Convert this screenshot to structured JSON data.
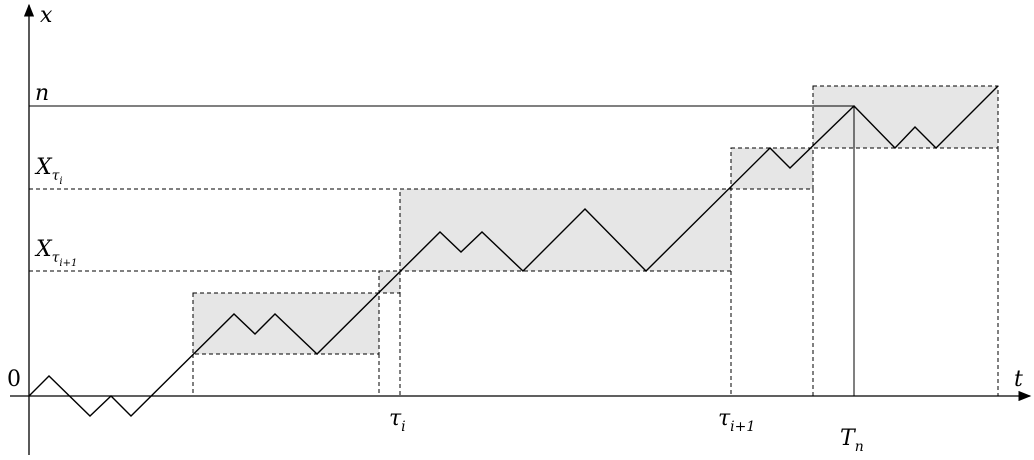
{
  "axes": {
    "x_axis_label": "t",
    "y_axis_label": "x",
    "origin_label": "0"
  },
  "y_labels": {
    "n": "n",
    "x_tau_i": {
      "base": "X",
      "sub": "τ",
      "subsub": "i"
    },
    "x_tau_i1": {
      "base": "X",
      "sub": "τ",
      "subsub": "i+1"
    }
  },
  "t_labels": {
    "tau_i": {
      "base": "τ",
      "sub": "i"
    },
    "tau_i1": {
      "base": "τ",
      "sub": "i+1"
    },
    "T_n": {
      "base": "T",
      "sub": "n"
    }
  },
  "colors": {
    "box_fill": "#e6e6e6",
    "line": "#000000"
  }
}
